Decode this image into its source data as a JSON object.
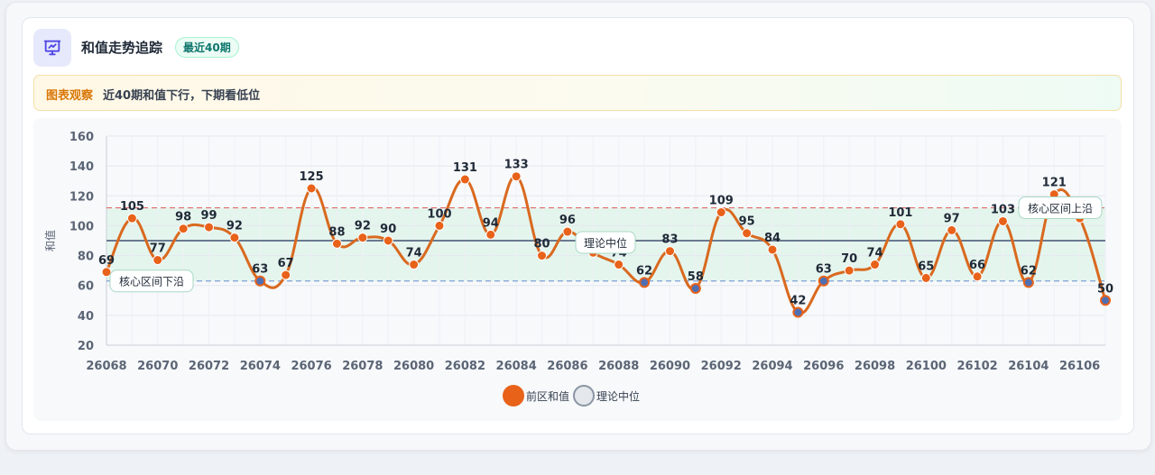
{
  "header": {
    "title": "和值走势追踪",
    "badge": "最近40期",
    "icon": "presentation-chart-icon"
  },
  "observation": {
    "tag": "图表观察",
    "text": "近40期和值下行，下期看低位"
  },
  "colors": {
    "series": "#d9691f",
    "point": "#e8621a",
    "point_low": "#4f6fb3",
    "upper_line": "#e06b6b",
    "lower_line": "#7fa0d4",
    "median_line": "#6b7a90",
    "band": "#dff4ea"
  },
  "chart_data": {
    "type": "line",
    "ylabel": "和值",
    "xlabel": "",
    "ylim": [
      20,
      160
    ],
    "yticks": [
      20,
      40,
      60,
      80,
      100,
      120,
      140,
      160
    ],
    "x_tick_labels": [
      "26068",
      "26070",
      "26072",
      "26074",
      "26076",
      "26078",
      "26080",
      "26082",
      "26084",
      "26086",
      "26088",
      "26090",
      "26092",
      "26094",
      "26096",
      "26098",
      "26100",
      "26102",
      "26104",
      "26106"
    ],
    "x": [
      26068,
      26069,
      26070,
      26071,
      26072,
      26073,
      26074,
      26075,
      26076,
      26077,
      26078,
      26079,
      26080,
      26081,
      26082,
      26083,
      26084,
      26085,
      26086,
      26087,
      26088,
      26089,
      26090,
      26091,
      26092,
      26093,
      26094,
      26095,
      26096,
      26097,
      26098,
      26099,
      26100,
      26101,
      26102,
      26103,
      26104,
      26105,
      26106,
      26107
    ],
    "series": [
      {
        "name": "前区和值",
        "values": [
          69,
          105,
          77,
          98,
          99,
          92,
          63,
          67,
          125,
          88,
          92,
          90,
          74,
          100,
          131,
          94,
          133,
          80,
          96,
          82,
          74,
          62,
          83,
          58,
          109,
          95,
          84,
          42,
          63,
          70,
          74,
          101,
          65,
          97,
          66,
          103,
          62,
          121,
          105,
          50
        ]
      }
    ],
    "reference_lines": [
      {
        "name": "理论中位",
        "value": 90,
        "label": "理论中位"
      },
      {
        "name": "核心区间上沿",
        "value": 112,
        "label": "核心区间上沿"
      },
      {
        "name": "核心区间下沿",
        "value": 63,
        "label": "核心区间下沿"
      }
    ],
    "core_band": [
      63,
      112
    ],
    "legend": [
      {
        "name": "前区和值"
      },
      {
        "name": "理论中位"
      }
    ],
    "legend_position": "bottom-center",
    "grid": true
  }
}
